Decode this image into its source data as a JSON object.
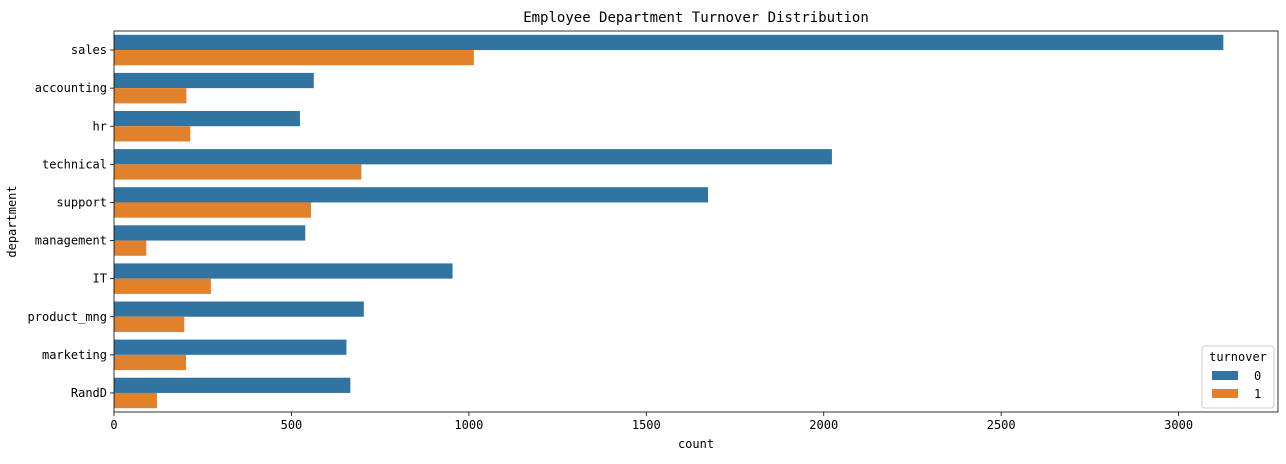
{
  "chart_data": {
    "type": "bar",
    "orientation": "horizontal",
    "title": "Employee Department Turnover Distribution",
    "xlabel": "count",
    "ylabel": "department",
    "xlim": [
      0,
      3280
    ],
    "xticks": [
      0,
      500,
      1000,
      1500,
      2000,
      2500,
      3000
    ],
    "categories": [
      "sales",
      "accounting",
      "hr",
      "technical",
      "support",
      "management",
      "IT",
      "product_mng",
      "marketing",
      "RandD"
    ],
    "series": [
      {
        "name": "0",
        "color": "#3274a1",
        "values": [
          3126,
          563,
          524,
          2023,
          1674,
          539,
          954,
          704,
          655,
          666
        ]
      },
      {
        "name": "1",
        "color": "#e1812c",
        "values": [
          1014,
          204,
          215,
          697,
          555,
          91,
          273,
          198,
          203,
          121
        ]
      }
    ],
    "legend": {
      "title": "turnover",
      "position": "lower right"
    },
    "grid": false
  }
}
